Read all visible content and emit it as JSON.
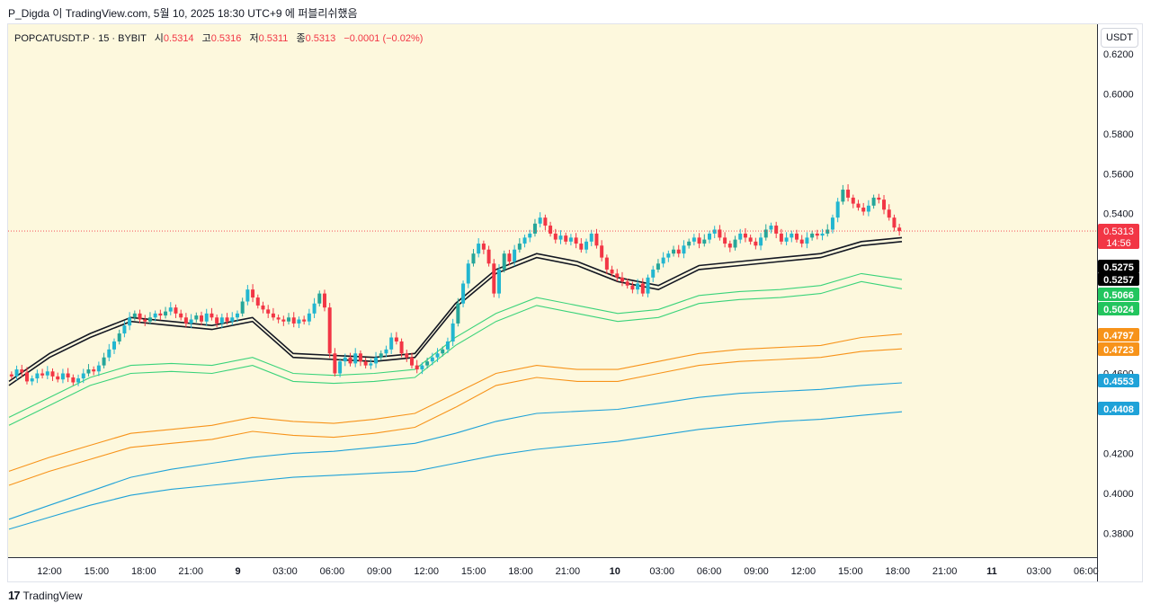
{
  "header": {
    "caption": "P_Digda 이 TradingView.com, 5월 10, 2025 18:30 UTC+9 에 퍼블리쉬했음"
  },
  "legend": {
    "symbol": "POPCATUSDT.P · 15 · BYBIT",
    "open_label": "시",
    "open": "0.5314",
    "high_label": "고",
    "high": "0.5316",
    "low_label": "저",
    "low": "0.5311",
    "close_label": "종",
    "close": "0.5313",
    "change": "−0.0001 (−0.02%)"
  },
  "currency_button": "USDT",
  "footer": {
    "brand": "TradingView",
    "logo_icon": "tradingview-logo-icon"
  },
  "colors": {
    "background": "#fdf8dd",
    "up": "#26a69a",
    "up_alt": "#22b6d0",
    "down": "#f23645",
    "ma_black": "#131722",
    "green_band": "#3ad37a",
    "orange_band": "#f7931a",
    "blue_band": "#1fa2d8"
  },
  "chart_data": {
    "type": "line",
    "title": "",
    "xlabel": "",
    "ylabel": "",
    "ylim": [
      0.368,
      0.6348
    ],
    "y_ticks": [
      "0.6200",
      "0.6000",
      "0.5800",
      "0.5600",
      "0.5400",
      "0.4600",
      "0.4200",
      "0.4000",
      "0.3800"
    ],
    "x_ticks": [
      "12:00",
      "15:00",
      "18:00",
      "21:00",
      "9",
      "03:00",
      "06:00",
      "09:00",
      "12:00",
      "15:00",
      "18:00",
      "21:00",
      "10",
      "03:00",
      "06:00",
      "09:00",
      "12:00",
      "15:00",
      "18:00",
      "21:00",
      "11",
      "03:00",
      "06:00"
    ],
    "x_tick_bold": [
      "9",
      "10",
      "11"
    ],
    "price_series_note": "",
    "candle_closes": [
      0.4585,
      0.462,
      0.4605,
      0.456,
      0.4575,
      0.46,
      0.459,
      0.461,
      0.4585,
      0.457,
      0.46,
      0.458,
      0.4555,
      0.4575,
      0.46,
      0.462,
      0.461,
      0.464,
      0.468,
      0.472,
      0.476,
      0.48,
      0.484,
      0.488,
      0.49,
      0.487,
      0.486,
      0.488,
      0.49,
      0.489,
      0.491,
      0.493,
      0.49,
      0.488,
      0.485,
      0.487,
      0.489,
      0.486,
      0.49,
      0.488,
      0.485,
      0.488,
      0.486,
      0.488,
      0.49,
      0.496,
      0.502,
      0.498,
      0.494,
      0.492,
      0.49,
      0.488,
      0.487,
      0.486,
      0.488,
      0.485,
      0.487,
      0.486,
      0.49,
      0.495,
      0.5,
      0.493,
      0.47,
      0.46,
      0.466,
      0.468,
      0.465,
      0.47,
      0.466,
      0.464,
      0.465,
      0.468,
      0.47,
      0.472,
      0.478,
      0.476,
      0.47,
      0.468,
      0.464,
      0.462,
      0.464,
      0.466,
      0.468,
      0.47,
      0.472,
      0.476,
      0.485,
      0.495,
      0.505,
      0.515,
      0.52,
      0.525,
      0.522,
      0.515,
      0.5,
      0.512,
      0.52,
      0.516,
      0.522,
      0.525,
      0.528,
      0.53,
      0.535,
      0.538,
      0.534,
      0.53,
      0.527,
      0.529,
      0.526,
      0.528,
      0.525,
      0.522,
      0.526,
      0.53,
      0.524,
      0.518,
      0.512,
      0.51,
      0.508,
      0.506,
      0.504,
      0.502,
      0.505,
      0.5,
      0.508,
      0.512,
      0.515,
      0.518,
      0.52,
      0.522,
      0.52,
      0.524,
      0.526,
      0.528,
      0.525,
      0.527,
      0.53,
      0.532,
      0.528,
      0.525,
      0.523,
      0.527,
      0.53,
      0.528,
      0.526,
      0.524,
      0.528,
      0.532,
      0.534,
      0.53,
      0.526,
      0.528,
      0.53,
      0.527,
      0.525,
      0.528,
      0.53,
      0.529,
      0.53,
      0.532,
      0.538,
      0.546,
      0.552,
      0.548,
      0.545,
      0.543,
      0.541,
      0.544,
      0.548,
      0.547,
      0.542,
      0.538,
      0.533,
      0.5313
    ],
    "series": [
      {
        "name": "",
        "color": "#131722",
        "values": [
          0.456,
          0.47,
          0.48,
          0.488,
          0.486,
          0.484,
          0.488,
          0.47,
          0.469,
          0.468,
          0.47,
          0.495,
          0.512,
          0.52,
          0.516,
          0.508,
          0.504,
          0.514,
          0.516,
          0.518,
          0.52,
          0.526,
          0.528
        ],
        "last_label": "0.5275"
      },
      {
        "name": "",
        "color": "#131722",
        "values": [
          0.454,
          0.468,
          0.478,
          0.486,
          0.484,
          0.482,
          0.486,
          0.468,
          0.467,
          0.466,
          0.468,
          0.493,
          0.51,
          0.518,
          0.514,
          0.506,
          0.502,
          0.512,
          0.514,
          0.516,
          0.518,
          0.524,
          0.526
        ],
        "last_label": "0.5257"
      },
      {
        "name": "",
        "color": "#3ad37a",
        "values": [
          0.438,
          0.448,
          0.458,
          0.464,
          0.465,
          0.464,
          0.468,
          0.46,
          0.459,
          0.46,
          0.462,
          0.478,
          0.49,
          0.498,
          0.494,
          0.49,
          0.492,
          0.499,
          0.501,
          0.502,
          0.504,
          0.51,
          0.507
        ],
        "last_label": "0.5066"
      },
      {
        "name": "",
        "color": "#3ad37a",
        "values": [
          0.434,
          0.444,
          0.454,
          0.46,
          0.461,
          0.46,
          0.464,
          0.456,
          0.455,
          0.456,
          0.458,
          0.474,
          0.486,
          0.494,
          0.49,
          0.486,
          0.488,
          0.495,
          0.497,
          0.498,
          0.5,
          0.506,
          0.5024
        ],
        "last_label": "0.5024"
      },
      {
        "name": "",
        "color": "#f7931a",
        "values": [
          0.411,
          0.418,
          0.424,
          0.43,
          0.432,
          0.434,
          0.438,
          0.436,
          0.435,
          0.437,
          0.44,
          0.45,
          0.46,
          0.464,
          0.462,
          0.462,
          0.466,
          0.47,
          0.472,
          0.473,
          0.474,
          0.478,
          0.4797
        ],
        "last_label": "0.4797"
      },
      {
        "name": "",
        "color": "#f7931a",
        "values": [
          0.404,
          0.411,
          0.417,
          0.423,
          0.425,
          0.427,
          0.431,
          0.429,
          0.428,
          0.43,
          0.433,
          0.443,
          0.454,
          0.458,
          0.456,
          0.456,
          0.46,
          0.464,
          0.466,
          0.467,
          0.468,
          0.471,
          0.4723
        ],
        "last_label": "0.4723"
      },
      {
        "name": "",
        "color": "#1fa2d8",
        "values": [
          0.387,
          0.394,
          0.401,
          0.408,
          0.412,
          0.415,
          0.418,
          0.42,
          0.421,
          0.423,
          0.425,
          0.43,
          0.436,
          0.44,
          0.441,
          0.442,
          0.445,
          0.448,
          0.45,
          0.451,
          0.452,
          0.454,
          0.4553
        ],
        "last_label": "0.4553"
      },
      {
        "name": "",
        "color": "#1fa2d8",
        "values": [
          0.382,
          0.388,
          0.394,
          0.399,
          0.402,
          0.404,
          0.406,
          0.408,
          0.409,
          0.41,
          0.411,
          0.415,
          0.419,
          0.422,
          0.424,
          0.426,
          0.429,
          0.432,
          0.434,
          0.436,
          0.437,
          0.439,
          0.4408
        ],
        "last_label": "0.4408"
      }
    ],
    "last_price": {
      "value": "0.5313",
      "countdown": "14:56",
      "color": "#f23645"
    },
    "price_labels": [
      {
        "value": "0.5275",
        "bg": "#000000",
        "fg": "#ffffff"
      },
      {
        "value": "0.5257",
        "bg": "#000000",
        "fg": "#ffffff"
      },
      {
        "value": "0.5066",
        "bg": "#22c55e",
        "fg": "#ffffff"
      },
      {
        "value": "0.5024",
        "bg": "#22c55e",
        "fg": "#ffffff"
      },
      {
        "value": "0.4797",
        "bg": "#f7931a",
        "fg": "#ffffff"
      },
      {
        "value": "0.4723",
        "bg": "#f7931a",
        "fg": "#ffffff"
      },
      {
        "value": "0.4553",
        "bg": "#1fa2d8",
        "fg": "#ffffff"
      },
      {
        "value": "0.4408",
        "bg": "#1fa2d8",
        "fg": "#ffffff"
      }
    ]
  }
}
